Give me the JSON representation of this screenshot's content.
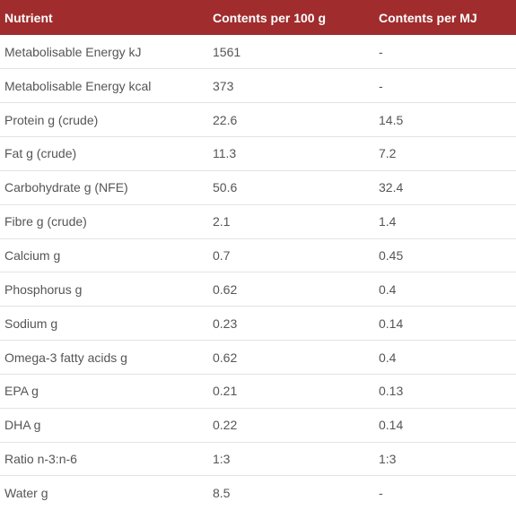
{
  "table": {
    "headers": [
      "Nutrient",
      "Contents per 100 g",
      "Contents per MJ"
    ],
    "rows": [
      [
        "Metabolisable Energy kJ",
        "1561",
        "-"
      ],
      [
        "Metabolisable Energy kcal",
        "373",
        "-"
      ],
      [
        "Protein g (crude)",
        "22.6",
        "14.5"
      ],
      [
        "Fat g (crude)",
        "11.3",
        "7.2"
      ],
      [
        "Carbohydrate g (NFE)",
        "50.6",
        "32.4"
      ],
      [
        "Fibre g (crude)",
        "2.1",
        "1.4"
      ],
      [
        "Calcium g",
        "0.7",
        "0.45"
      ],
      [
        "Phosphorus g",
        "0.62",
        "0.4"
      ],
      [
        "Sodium g",
        "0.23",
        "0.14"
      ],
      [
        "Omega-3 fatty acids g",
        "0.62",
        "0.4"
      ],
      [
        "EPA g",
        "0.21",
        "0.13"
      ],
      [
        "DHA g",
        "0.22",
        "0.14"
      ],
      [
        "Ratio n-3:n-6",
        "1:3",
        "1:3"
      ],
      [
        "Water g",
        "8.5",
        "-"
      ]
    ]
  },
  "colors": {
    "header_bg": "#a02c2d",
    "header_text": "#ffffff",
    "body_text": "#555555",
    "row_divider": "#e3e3e3"
  }
}
